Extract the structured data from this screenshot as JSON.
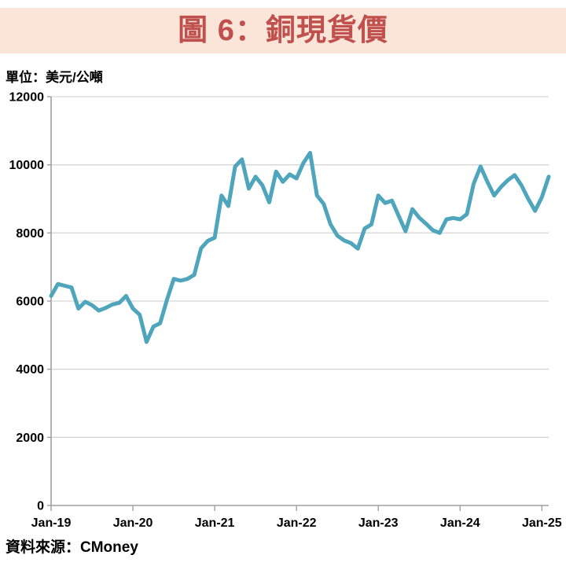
{
  "title": "圖 6：銅現貨價",
  "unit_label": "單位：美元/公噸",
  "source_label": "資料來源：CMoney",
  "colors": {
    "banner_bg": "#FBE5D8",
    "title_text": "#C0504D",
    "line": "#4FA5BC",
    "gridline": "#D6D6D6",
    "axis": "#A0A0A0",
    "label_text": "#000000"
  },
  "chart_data": {
    "type": "line",
    "title": "圖 6：銅現貨價",
    "unit": "美元/公噸",
    "source": "CMoney",
    "ylabel": "",
    "xlabel": "",
    "ylim": [
      0,
      12000
    ],
    "ytick_interval": 2000,
    "ytick_labels": [
      "0",
      "2000",
      "4000",
      "6000",
      "8000",
      "10000",
      "12000"
    ],
    "grid": true,
    "legend": "none",
    "x_tick_labels": [
      "Jan-19",
      "Jan-20",
      "Jan-21",
      "Jan-22",
      "Jan-23",
      "Jan-24",
      "Jan-25"
    ],
    "x_tick_indices": [
      0,
      12,
      24,
      36,
      48,
      60,
      72
    ],
    "x": [
      "2019-01",
      "2019-02",
      "2019-03",
      "2019-04",
      "2019-05",
      "2019-06",
      "2019-07",
      "2019-08",
      "2019-09",
      "2019-10",
      "2019-11",
      "2019-12",
      "2020-01",
      "2020-02",
      "2020-03",
      "2020-04",
      "2020-05",
      "2020-06",
      "2020-07",
      "2020-08",
      "2020-09",
      "2020-10",
      "2020-11",
      "2020-12",
      "2021-01",
      "2021-02",
      "2021-03",
      "2021-04",
      "2021-05",
      "2021-06",
      "2021-07",
      "2021-08",
      "2021-09",
      "2021-10",
      "2021-11",
      "2021-12",
      "2022-01",
      "2022-02",
      "2022-03",
      "2022-04",
      "2022-05",
      "2022-06",
      "2022-07",
      "2022-08",
      "2022-09",
      "2022-10",
      "2022-11",
      "2022-12",
      "2023-01",
      "2023-02",
      "2023-03",
      "2023-04",
      "2023-05",
      "2023-06",
      "2023-07",
      "2023-08",
      "2023-09",
      "2023-10",
      "2023-11",
      "2023-12",
      "2024-01",
      "2024-02",
      "2024-03",
      "2024-04",
      "2024-05",
      "2024-06",
      "2024-07",
      "2024-08",
      "2024-09",
      "2024-10",
      "2024-11",
      "2024-12",
      "2025-01",
      "2025-02"
    ],
    "values": [
      6150,
      6500,
      6450,
      6400,
      5780,
      5980,
      5880,
      5720,
      5800,
      5900,
      5950,
      6150,
      5780,
      5600,
      4800,
      5250,
      5350,
      6040,
      6650,
      6600,
      6650,
      6770,
      7550,
      7770,
      7860,
      9100,
      8790,
      9950,
      10160,
      9300,
      9650,
      9400,
      8900,
      9800,
      9500,
      9720,
      9600,
      10050,
      10350,
      9100,
      8850,
      8250,
      7920,
      7780,
      7700,
      7540,
      8130,
      8250,
      9100,
      8880,
      8950,
      8500,
      8050,
      8700,
      8450,
      8270,
      8080,
      8000,
      8400,
      8440,
      8400,
      8550,
      9450,
      9950,
      9500,
      9100,
      9350,
      9550,
      9700,
      9400,
      9000,
      8650,
      9050,
      9650
    ]
  }
}
